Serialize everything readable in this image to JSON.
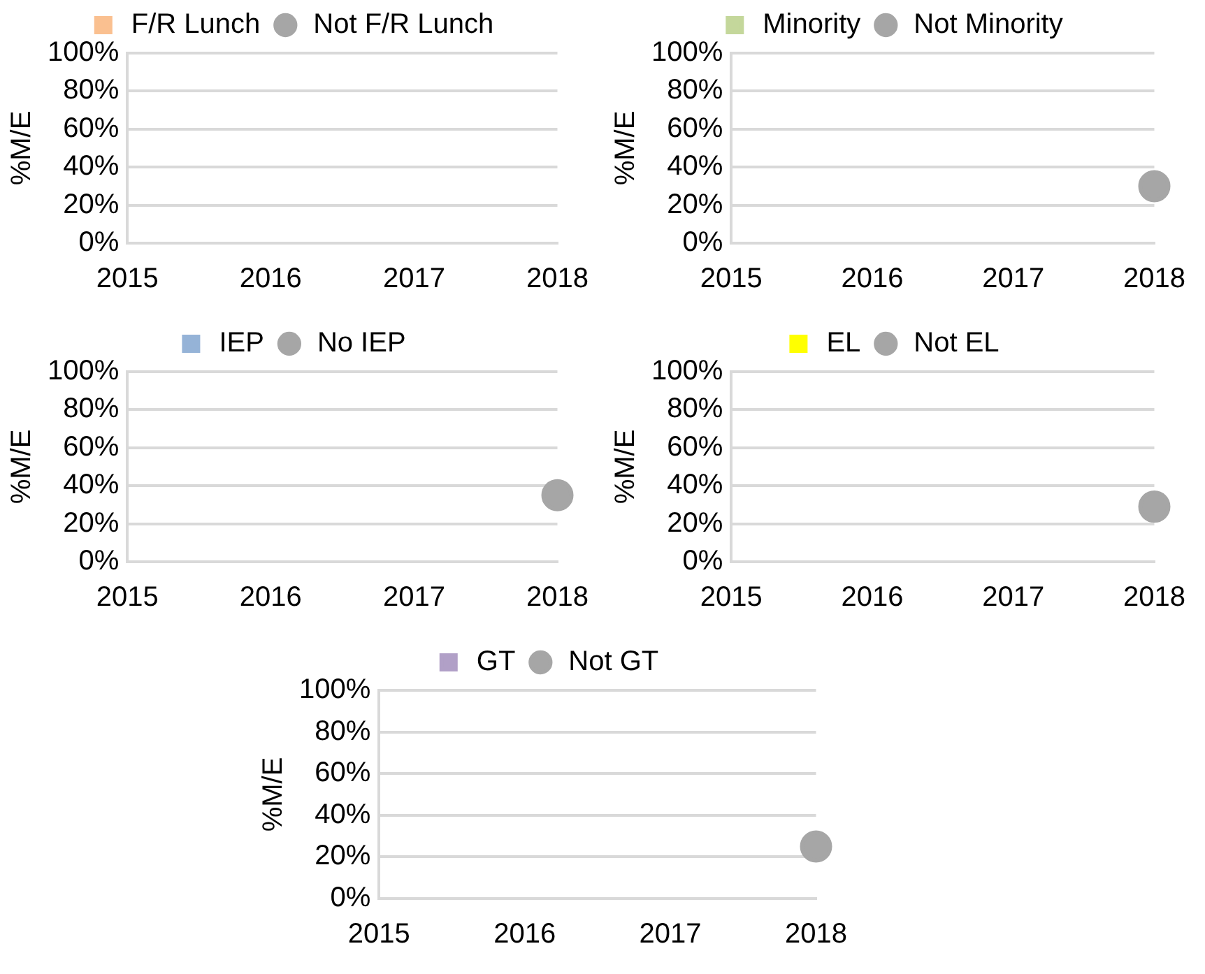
{
  "chart_data": [
    {
      "type": "line",
      "ylabel": "%M/E",
      "categories": [
        "2015",
        "2016",
        "2017",
        "2018"
      ],
      "ylim": [
        0,
        100
      ],
      "yticks": [
        {
          "value": 0,
          "label": "0%"
        },
        {
          "value": 20,
          "label": "20%"
        },
        {
          "value": 40,
          "label": "40%"
        },
        {
          "value": 60,
          "label": "60%"
        },
        {
          "value": 80,
          "label": "80%"
        },
        {
          "value": 100,
          "label": "100%"
        }
      ],
      "grid": "y",
      "legend": "top",
      "series": [
        {
          "name": "F/R Lunch",
          "color": "#fac090",
          "marker": "square",
          "values": [
            null,
            null,
            null,
            null
          ]
        },
        {
          "name": "Not F/R Lunch",
          "color": "#a6a6a6",
          "marker": "circle",
          "values": [
            null,
            null,
            null,
            null
          ]
        }
      ]
    },
    {
      "type": "line",
      "ylabel": "%M/E",
      "categories": [
        "2015",
        "2016",
        "2017",
        "2018"
      ],
      "ylim": [
        0,
        100
      ],
      "yticks": [
        {
          "value": 0,
          "label": "0%"
        },
        {
          "value": 20,
          "label": "20%"
        },
        {
          "value": 40,
          "label": "40%"
        },
        {
          "value": 60,
          "label": "60%"
        },
        {
          "value": 80,
          "label": "80%"
        },
        {
          "value": 100,
          "label": "100%"
        }
      ],
      "grid": "y",
      "legend": "top",
      "series": [
        {
          "name": "Minority",
          "color": "#c4d79b",
          "marker": "square",
          "values": [
            null,
            null,
            null,
            null
          ]
        },
        {
          "name": "Not Minority",
          "color": "#a6a6a6",
          "marker": "circle",
          "values": [
            null,
            null,
            null,
            30
          ]
        }
      ]
    },
    {
      "type": "line",
      "ylabel": "%M/E",
      "categories": [
        "2015",
        "2016",
        "2017",
        "2018"
      ],
      "ylim": [
        0,
        100
      ],
      "yticks": [
        {
          "value": 0,
          "label": "0%"
        },
        {
          "value": 20,
          "label": "20%"
        },
        {
          "value": 40,
          "label": "40%"
        },
        {
          "value": 60,
          "label": "60%"
        },
        {
          "value": 80,
          "label": "80%"
        },
        {
          "value": 100,
          "label": "100%"
        }
      ],
      "grid": "y",
      "legend": "top",
      "series": [
        {
          "name": "IEP",
          "color": "#95b3d7",
          "marker": "square",
          "values": [
            null,
            null,
            null,
            null
          ]
        },
        {
          "name": "No IEP",
          "color": "#a6a6a6",
          "marker": "circle",
          "values": [
            null,
            null,
            null,
            35
          ]
        }
      ]
    },
    {
      "type": "line",
      "ylabel": "%M/E",
      "categories": [
        "2015",
        "2016",
        "2017",
        "2018"
      ],
      "ylim": [
        0,
        100
      ],
      "yticks": [
        {
          "value": 0,
          "label": "0%"
        },
        {
          "value": 20,
          "label": "20%"
        },
        {
          "value": 40,
          "label": "40%"
        },
        {
          "value": 60,
          "label": "60%"
        },
        {
          "value": 80,
          "label": "80%"
        },
        {
          "value": 100,
          "label": "100%"
        }
      ],
      "grid": "y",
      "legend": "top",
      "series": [
        {
          "name": "EL",
          "color": "#ffff00",
          "marker": "square",
          "values": [
            null,
            null,
            null,
            null
          ]
        },
        {
          "name": "Not EL",
          "color": "#a6a6a6",
          "marker": "circle",
          "values": [
            null,
            null,
            null,
            29
          ]
        }
      ]
    },
    {
      "type": "line",
      "ylabel": "%M/E",
      "categories": [
        "2015",
        "2016",
        "2017",
        "2018"
      ],
      "ylim": [
        0,
        100
      ],
      "yticks": [
        {
          "value": 0,
          "label": "0%"
        },
        {
          "value": 20,
          "label": "20%"
        },
        {
          "value": 40,
          "label": "40%"
        },
        {
          "value": 60,
          "label": "60%"
        },
        {
          "value": 80,
          "label": "80%"
        },
        {
          "value": 100,
          "label": "100%"
        }
      ],
      "grid": "y",
      "legend": "top",
      "series": [
        {
          "name": "GT",
          "color": "#b1a0c7",
          "marker": "square",
          "values": [
            null,
            null,
            null,
            null
          ]
        },
        {
          "name": "Not GT",
          "color": "#a6a6a6",
          "marker": "circle",
          "values": [
            null,
            null,
            null,
            25
          ]
        }
      ]
    }
  ]
}
